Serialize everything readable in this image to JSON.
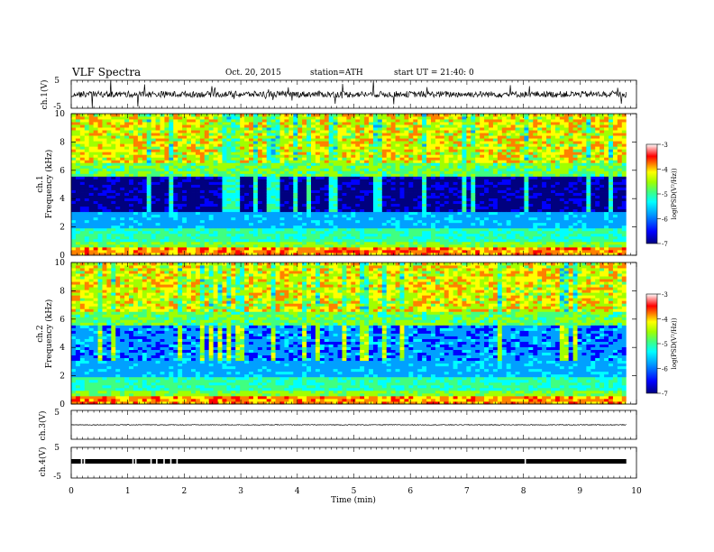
{
  "header": {
    "title": "VLF  Spectra",
    "date": "Oct. 20, 2015",
    "station": "station=ATH",
    "start": "start  UT  =   21:40: 0"
  },
  "chart_data": [
    {
      "type": "line",
      "panel": "ch1-waveform",
      "ylabel": "ch.1(V)",
      "ylim": [
        -5,
        5
      ],
      "yticks": [
        "5",
        "-5"
      ],
      "xlim": [
        0,
        10
      ]
    },
    {
      "type": "heatmap",
      "panel": "ch1-spectrogram",
      "ylabel_channel": "ch.1",
      "ylabel": "Frequency  (kHz)",
      "ylim": [
        0,
        10
      ],
      "yticks": [
        "0",
        "2",
        "4",
        "6",
        "8",
        "10"
      ],
      "xlim": [
        0,
        10
      ],
      "colorbar": {
        "label": "log(PSD(V²/Hz))",
        "range": [
          -7,
          -3
        ],
        "ticks": [
          "-3",
          "-4",
          "-5",
          "-6",
          "-7"
        ]
      }
    },
    {
      "type": "heatmap",
      "panel": "ch2-spectrogram",
      "ylabel_channel": "ch.2",
      "ylabel": "Frequency  (kHz)",
      "ylim": [
        0,
        10
      ],
      "yticks": [
        "0",
        "2",
        "4",
        "6",
        "8",
        "10"
      ],
      "xlim": [
        0,
        10
      ],
      "colorbar": {
        "label": "log(PSD(V²/Hz))",
        "range": [
          -7,
          -3
        ],
        "ticks": [
          "-3",
          "-4",
          "-5",
          "-6",
          "-7"
        ]
      }
    },
    {
      "type": "line",
      "panel": "ch3-waveform",
      "ylabel": "ch.3(V)",
      "ylim": [
        -5,
        5
      ],
      "yticks": [
        "5"
      ],
      "xlim": [
        0,
        10
      ]
    },
    {
      "type": "line",
      "panel": "ch4-waveform",
      "ylabel": "ch.4(V)",
      "ylim": [
        -5,
        5
      ],
      "yticks": [
        "5",
        "-5"
      ],
      "xlim": [
        0,
        10
      ]
    }
  ],
  "xaxis": {
    "label": "Time  (min)",
    "ticks": [
      "0",
      "1",
      "2",
      "3",
      "4",
      "5",
      "6",
      "7",
      "8",
      "9",
      "10"
    ],
    "data_end": 9.82
  },
  "colors": {
    "jet": [
      "#00007f",
      "#0000ff",
      "#00a0ff",
      "#00ffff",
      "#40ff80",
      "#a0ff00",
      "#ffff00",
      "#ff8000",
      "#ff0000",
      "#ff9090",
      "#ffffff"
    ]
  }
}
